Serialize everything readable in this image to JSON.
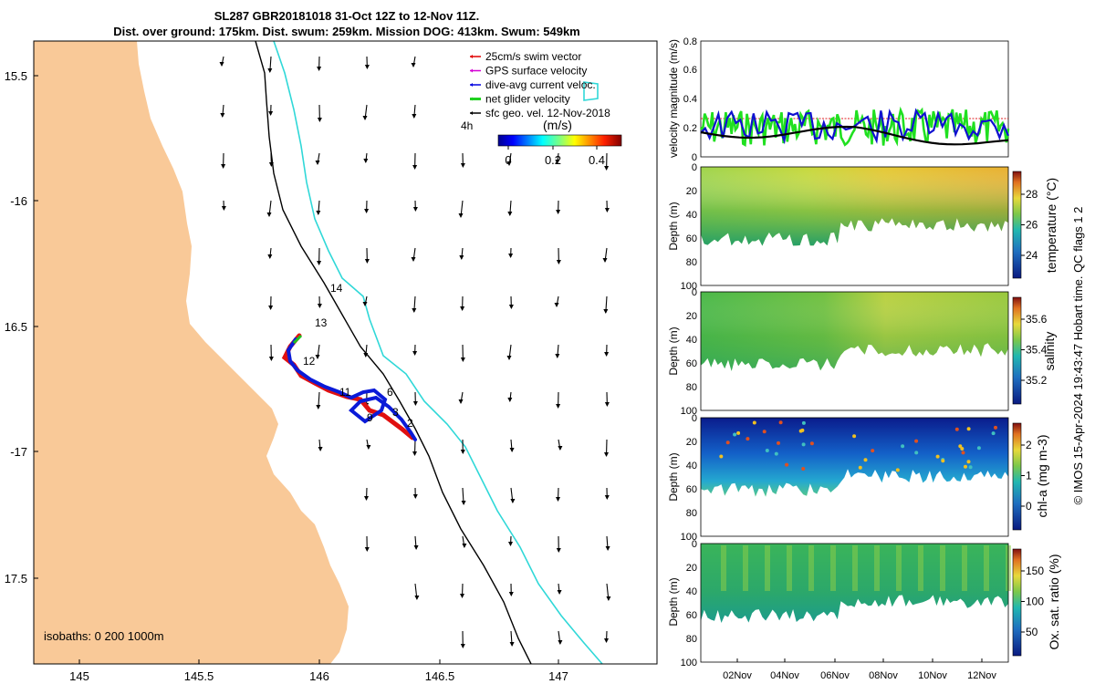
{
  "title": {
    "line1": "SL287 GBR20181018 31-Oct 12Z to 12-Nov 11Z.",
    "line2": "Dist. over ground: 175km. Dist. swum: 259km. Mission DOG: 413km. Swum: 549km"
  },
  "map": {
    "lat_ticks": [
      "15.5",
      "-16",
      "16.5",
      "-17",
      "17.5"
    ],
    "lon_ticks": [
      "145",
      "145.5",
      "146",
      "146.5",
      "147"
    ],
    "isobaths_label": "isobaths: 0   200  1000m",
    "day_labels": [
      "14",
      "13",
      "12",
      "11",
      "6",
      "3",
      "2",
      "9"
    ],
    "legend": {
      "items": [
        {
          "label": "25cm/s swim vector",
          "color": "#e00000"
        },
        {
          "label": "GPS surface velocity",
          "color": "#d400d4"
        },
        {
          "label": "dive-avg current veloc.",
          "color": "#0000e0"
        },
        {
          "label": "net glider velocity",
          "color": "#20d020"
        },
        {
          "label": "sfc geo. vel. 12-Nov-2018",
          "color": "#000000"
        }
      ],
      "time_label": "4h",
      "units_label": "(m/s)",
      "colorbar_ticks": [
        "0",
        "0.2",
        "0.4"
      ]
    }
  },
  "panels": {
    "velocity": {
      "ylabel": "velocity magnitude (m/s)",
      "yticks": [
        "0",
        "0.2",
        "0.4",
        "0.6",
        "0.8"
      ]
    },
    "temperature": {
      "ylabel": "Depth (m)",
      "cbar_label": "temperature (°C)",
      "cbar_ticks": [
        "28",
        "26",
        "24"
      ],
      "yticks": [
        "0",
        "20",
        "40",
        "60",
        "80",
        "100"
      ]
    },
    "salinity": {
      "ylabel": "Depth (m)",
      "cbar_label": "salinity",
      "cbar_ticks": [
        "35.6",
        "35.4",
        "35.2"
      ],
      "yticks": [
        "0",
        "20",
        "40",
        "60",
        "80",
        "100"
      ]
    },
    "chla": {
      "ylabel": "Depth (m)",
      "cbar_label": "chl-a (mg m-3)",
      "cbar_ticks": [
        "2",
        "1",
        "0"
      ],
      "yticks": [
        "0",
        "20",
        "40",
        "60",
        "80",
        "100"
      ]
    },
    "oxygen": {
      "ylabel": "Depth (m)",
      "cbar_label": "Ox. sat. ratio (%)",
      "cbar_ticks": [
        "150",
        "100",
        "50"
      ],
      "yticks": [
        "0",
        "20",
        "40",
        "60",
        "80",
        "100"
      ]
    },
    "x_ticks": [
      "02Nov",
      "04Nov",
      "06Nov",
      "08Nov",
      "10Nov",
      "12Nov"
    ]
  },
  "credit": "© IMOS 15-Apr-2024 19:43:47 Hobart time. QC flags 1  2",
  "colors": {
    "land": "#f9c998",
    "isobath200": "#000000",
    "isobath1000": "#30d8d8"
  }
}
